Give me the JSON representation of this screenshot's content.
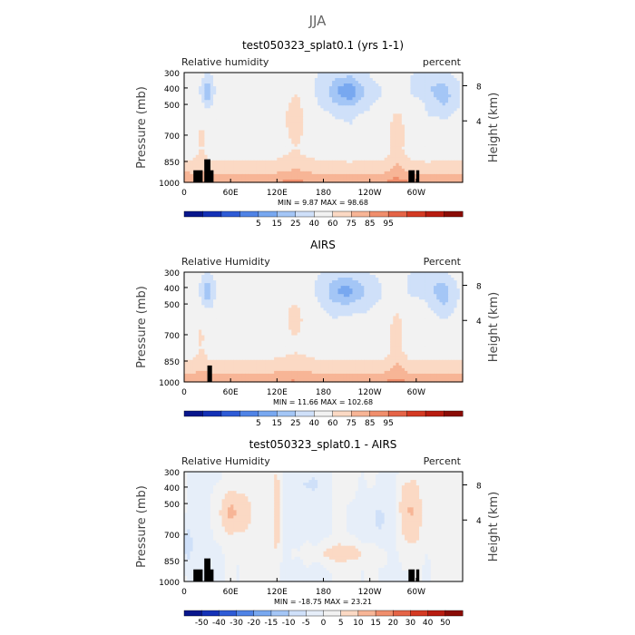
{
  "figure": {
    "title": "JJA"
  },
  "panels": [
    {
      "title": "test050323_splat0.1 (yrs 1-1)",
      "left_label": "Relative humidity",
      "right_label": "percent",
      "stats": "MIN =    9.87   MAX =   98.68",
      "colorbar": {
        "labels": [
          "5",
          "15",
          "25",
          "40",
          "60",
          "75",
          "85",
          "95"
        ],
        "colors": [
          "#08168c",
          "#1431b6",
          "#2e5bd6",
          "#4f83e6",
          "#78a8f0",
          "#a4c6f6",
          "#cfe0f9",
          "#f2f2f2",
          "#fbd9c4",
          "#f7b596",
          "#f08e6c",
          "#e56447",
          "#d43a23",
          "#b81c10",
          "#8a0c06"
        ]
      }
    },
    {
      "title": "AIRS",
      "left_label": "Relative Humidity",
      "right_label": "Percent",
      "stats": "MIN =   11.66   MAX =  102.68",
      "colorbar": {
        "labels": [
          "5",
          "15",
          "25",
          "40",
          "60",
          "75",
          "85",
          "95"
        ],
        "colors": [
          "#08168c",
          "#1431b6",
          "#2e5bd6",
          "#4f83e6",
          "#78a8f0",
          "#a4c6f6",
          "#cfe0f9",
          "#f2f2f2",
          "#fbd9c4",
          "#f7b596",
          "#f08e6c",
          "#e56447",
          "#d43a23",
          "#b81c10",
          "#8a0c06"
        ]
      }
    },
    {
      "title": "test050323_splat0.1 - AIRS",
      "left_label": "Relative Humidity",
      "right_label": "Percent",
      "stats": "MIN =  -18.75   MAX =   23.21",
      "colorbar": {
        "labels": [
          "-50",
          "-40",
          "-30",
          "-20",
          "-15",
          "-10",
          "-5",
          "0",
          "5",
          "10",
          "15",
          "20",
          "30",
          "40",
          "50"
        ],
        "colors": [
          "#08168c",
          "#1431b6",
          "#2e5bd6",
          "#4f83e6",
          "#78a8f0",
          "#a4c6f6",
          "#cfe0f9",
          "#e6eef9",
          "#f2f2f2",
          "#fbd9c4",
          "#f7b596",
          "#f08e6c",
          "#e56447",
          "#d43a23",
          "#b81c10",
          "#8a0c06"
        ]
      }
    }
  ],
  "chart_data": {
    "type": "heatmap",
    "title": "JJA",
    "xticks": [
      "0",
      "60E",
      "120E",
      "180",
      "120W",
      "60W"
    ],
    "xtick_values": [
      0,
      60,
      120,
      180,
      240,
      300
    ],
    "xlim": [
      0,
      360
    ],
    "ylabel": "Pressure (mb)",
    "yticks": [
      "300",
      "400",
      "500",
      "700",
      "850",
      "1000"
    ],
    "ytick_values": [
      300,
      400,
      500,
      700,
      850,
      1000
    ],
    "ylim": [
      1000,
      300
    ],
    "ylabel_right": "Height (km)",
    "yticks_right": [
      "8",
      "4"
    ],
    "yticks_right_values": [
      8,
      4
    ],
    "panels": [
      {
        "name": "test050323_splat0.1 (yrs 1-1)",
        "min": 9.87,
        "max": 98.68,
        "units": "percent"
      },
      {
        "name": "AIRS",
        "min": 11.66,
        "max": 102.68,
        "units": "Percent"
      },
      {
        "name": "test050323_splat0.1 - AIRS",
        "min": -18.75,
        "max": 23.21,
        "units": "Percent"
      }
    ]
  }
}
